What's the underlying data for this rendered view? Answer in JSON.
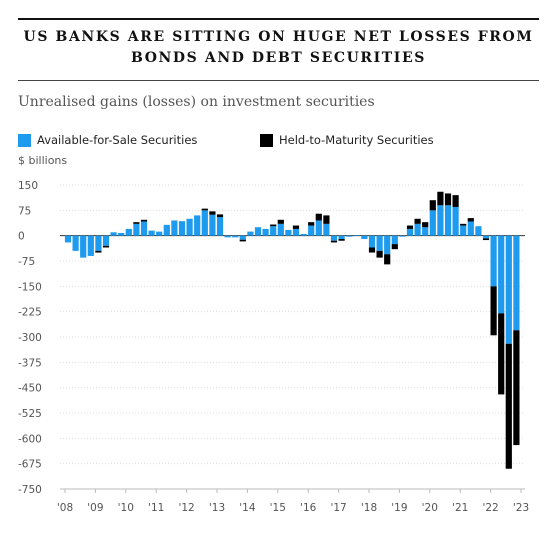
{
  "header": {
    "title_line1": "US BANKS ARE SITTING ON HUGE NET LOSSES FROM",
    "title_line2": "BONDS AND DEBT SECURITIES",
    "subtitle": "Unrealised gains (losses) on investment securities",
    "units": "$ billions"
  },
  "legend": {
    "afs_label": "Available-for-Sale Securities",
    "htm_label": "Held-to-Maturity Securities"
  },
  "colors": {
    "afs": "#1e9bef",
    "htm": "#000000",
    "grid": "#dddddd",
    "zero": "#333333"
  },
  "chart_data": {
    "type": "bar",
    "stacked": true,
    "title": "US BANKS ARE SITTING ON HUGE NET LOSSES FROM BONDS AND DEBT SECURITIES",
    "subtitle": "Unrealised gains (losses) on investment securities",
    "ylabel": "$ billions",
    "ylim": [
      -750,
      150
    ],
    "yticks": [
      150,
      75,
      0,
      -75,
      -150,
      -225,
      -300,
      -375,
      -450,
      -525,
      -600,
      -675,
      -750
    ],
    "ytick_labels": [
      "150",
      "75",
      "0",
      "-75",
      "-150",
      "-225",
      "-300",
      "-375",
      "-450",
      "-525",
      "-600",
      "-675",
      "-750"
    ],
    "xtick_labels": [
      "'08",
      "'09",
      "'10",
      "'11",
      "'12",
      "'13",
      "'14",
      "'15",
      "'16",
      "'17",
      "'18",
      "'19",
      "'20",
      "'21",
      "'22",
      "'23"
    ],
    "grid": true,
    "legend_position": "top",
    "quarters": [
      "2008 Q1",
      "2008 Q2",
      "2008 Q3",
      "2008 Q4",
      "2009 Q1",
      "2009 Q2",
      "2009 Q3",
      "2009 Q4",
      "2010 Q1",
      "2010 Q2",
      "2010 Q3",
      "2010 Q4",
      "2011 Q1",
      "2011 Q2",
      "2011 Q3",
      "2011 Q4",
      "2012 Q1",
      "2012 Q2",
      "2012 Q3",
      "2012 Q4",
      "2013 Q1",
      "2013 Q2",
      "2013 Q3",
      "2013 Q4",
      "2014 Q1",
      "2014 Q2",
      "2014 Q3",
      "2014 Q4",
      "2015 Q1",
      "2015 Q2",
      "2015 Q3",
      "2015 Q4",
      "2016 Q1",
      "2016 Q2",
      "2016 Q3",
      "2016 Q4",
      "2017 Q1",
      "2017 Q2",
      "2017 Q3",
      "2017 Q4",
      "2018 Q1",
      "2018 Q2",
      "2018 Q3",
      "2018 Q4",
      "2019 Q1",
      "2019 Q2",
      "2019 Q3",
      "2019 Q4",
      "2020 Q1",
      "2020 Q2",
      "2020 Q3",
      "2020 Q4",
      "2021 Q1",
      "2021 Q2",
      "2021 Q3",
      "2021 Q4",
      "2022 Q1",
      "2022 Q2",
      "2022 Q3",
      "2022 Q4"
    ],
    "series": [
      {
        "name": "Available-for-Sale Securities",
        "values": [
          -20,
          -45,
          -65,
          -60,
          -45,
          -30,
          10,
          8,
          20,
          35,
          42,
          15,
          12,
          32,
          45,
          43,
          50,
          60,
          75,
          62,
          55,
          -5,
          -5,
          -12,
          12,
          25,
          20,
          28,
          35,
          17,
          20,
          5,
          30,
          45,
          35,
          -15,
          -10,
          -3,
          2,
          -10,
          -35,
          -45,
          -55,
          -25,
          -3,
          20,
          35,
          25,
          75,
          90,
          90,
          85,
          30,
          42,
          28,
          -8,
          -150,
          -230,
          -320,
          -280
        ]
      },
      {
        "name": "Held-to-Maturity Securities",
        "values": [
          0,
          0,
          0,
          0,
          -5,
          -5,
          0,
          0,
          0,
          5,
          5,
          0,
          0,
          0,
          0,
          0,
          0,
          0,
          5,
          10,
          8,
          0,
          0,
          -5,
          0,
          0,
          0,
          5,
          12,
          0,
          10,
          0,
          10,
          20,
          25,
          -5,
          -5,
          0,
          0,
          0,
          -15,
          -20,
          -30,
          -15,
          0,
          10,
          15,
          15,
          30,
          40,
          35,
          35,
          5,
          10,
          0,
          -5,
          -145,
          -240,
          -370,
          -340
        ]
      }
    ]
  }
}
